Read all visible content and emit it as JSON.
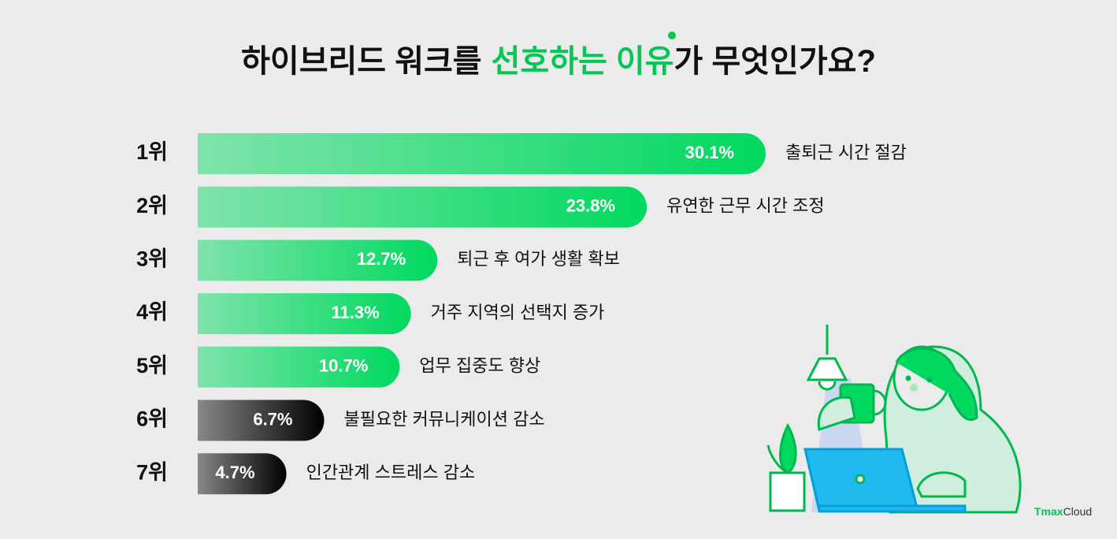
{
  "chart_data": {
    "type": "bar",
    "title_start": "하이브리드 워크를",
    "title_highlight": "선호하는 이유",
    "title_end": "가 무엇인가요?",
    "highlight_color": "#00c853",
    "ranks": [
      "1위",
      "2위",
      "3위",
      "4위",
      "5위",
      "6위",
      "7위"
    ],
    "categories": [
      "출퇴근 시간 절감",
      "유연한 근무 시간 조정",
      "퇴근 후 여가 생활 확보",
      "거주 지역의 선택지 증가",
      "업무 집중도 향상",
      "불필요한 커뮤니케이션 감소",
      "인간관계 스트레스 감소"
    ],
    "values": [
      30.1,
      23.8,
      12.7,
      11.3,
      10.7,
      6.7,
      4.7
    ],
    "value_labels": [
      "30.1%",
      "23.8%",
      "12.7%",
      "11.3%",
      "10.7%",
      "6.7%",
      "4.7%"
    ],
    "colors": [
      "#00d95f",
      "#00d95f",
      "#00d95f",
      "#00d95f",
      "#00d95f",
      "#000000",
      "#000000"
    ],
    "logo_brand": "Tmax",
    "logo_product": "Cloud"
  }
}
